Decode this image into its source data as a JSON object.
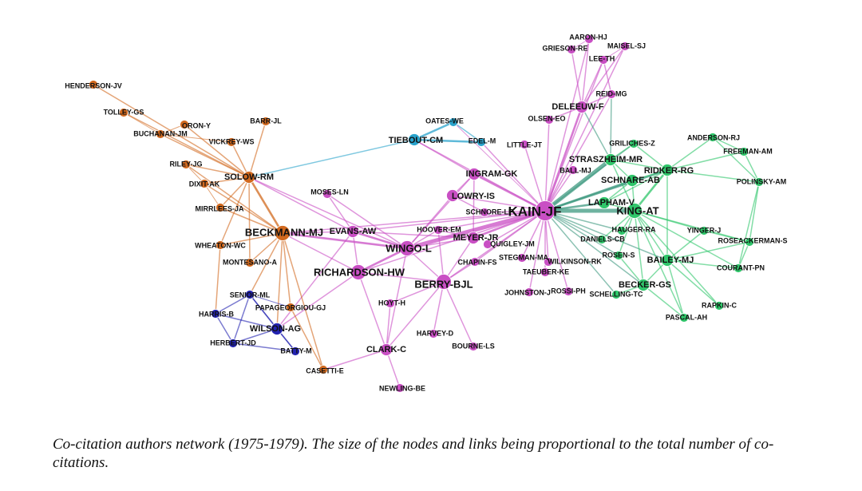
{
  "caption": "Co-citation authors network (1975-1979). The size of the nodes and links being proportional to the total number of co-citations.",
  "colors": {
    "orange": "#d2691e",
    "cyan": "#29a3cc",
    "magenta": "#c94fc4",
    "green": "#2fc66a",
    "blue": "#2323b0",
    "teal": "#3f9a80"
  },
  "nodes": [
    {
      "id": "KAIN-JF",
      "label": "KAIN-JF",
      "group": "magenta",
      "size": 3
    },
    {
      "id": "WINGO-L",
      "label": "WINGO-L",
      "group": "magenta",
      "size": 2
    },
    {
      "id": "BERRY-BJL",
      "label": "BERRY-BJL",
      "group": "magenta",
      "size": 2
    },
    {
      "id": "RICHARDSON-HW",
      "label": "RICHARDSON-HW",
      "group": "magenta",
      "size": 2
    },
    {
      "id": "EVANS-AW",
      "label": "EVANS-AW",
      "group": "magenta",
      "size": 1
    },
    {
      "id": "HOOVER-EM",
      "label": "HOOVER-EM",
      "group": "magenta",
      "size": 0
    },
    {
      "id": "MEYER-JR",
      "label": "MEYER-JR",
      "group": "magenta",
      "size": 1
    },
    {
      "id": "LOWRY-IS",
      "label": "LOWRY-IS",
      "group": "magenta",
      "size": 1
    },
    {
      "id": "INGRAM-GK",
      "label": "INGRAM-GK",
      "group": "magenta",
      "size": 1
    },
    {
      "id": "SCHNORE-LF",
      "label": "SCHNORE-LF",
      "group": "magenta",
      "size": 0
    },
    {
      "id": "QUIGLEY-JM",
      "label": "QUIGLEY-JM",
      "group": "magenta",
      "size": 0
    },
    {
      "id": "CHAPIN-FS",
      "label": "CHAPIN-FS",
      "group": "magenta",
      "size": 0
    },
    {
      "id": "STEGMAN-MA",
      "label": "STEGMAN-MA",
      "group": "magenta",
      "size": 0
    },
    {
      "id": "WILKINSON-RK",
      "label": "WILKINSON-RK",
      "group": "magenta",
      "size": 0
    },
    {
      "id": "TAEUBER-KE",
      "label": "TAEUBER-KE",
      "group": "magenta",
      "size": 0
    },
    {
      "id": "JOHNSTON-J",
      "label": "JOHNSTON-J",
      "group": "magenta",
      "size": 0
    },
    {
      "id": "ROSSI-PH",
      "label": "ROSSI-PH",
      "group": "magenta",
      "size": 0
    },
    {
      "id": "HOYT-H",
      "label": "HOYT-H",
      "group": "magenta",
      "size": 0
    },
    {
      "id": "HARVEY-D",
      "label": "HARVEY-D",
      "group": "magenta",
      "size": 0
    },
    {
      "id": "CLARK-C",
      "label": "CLARK-C",
      "group": "magenta",
      "size": 1
    },
    {
      "id": "BOURNE-LS",
      "label": "BOURNE-LS",
      "group": "magenta",
      "size": 0
    },
    {
      "id": "NEWLING-BE",
      "label": "NEWLING-BE",
      "group": "magenta",
      "size": 0
    },
    {
      "id": "MOSES-LN",
      "label": "MOSES-LN",
      "group": "magenta",
      "size": 0
    },
    {
      "id": "LITTLE-JT",
      "label": "LITTLE-JT",
      "group": "magenta",
      "size": 0
    },
    {
      "id": "OLSEN-EO",
      "label": "OLSEN-EO",
      "group": "magenta",
      "size": 0
    },
    {
      "id": "DELEEUW-F",
      "label": "DELEEUW-F",
      "group": "magenta",
      "size": 1
    },
    {
      "id": "REID-MG",
      "label": "REID-MG",
      "group": "magenta",
      "size": 0
    },
    {
      "id": "AARON-HJ",
      "label": "AARON-HJ",
      "group": "magenta",
      "size": 0
    },
    {
      "id": "GRIESON-RE",
      "label": "GRIESON-RE",
      "group": "magenta",
      "size": 0
    },
    {
      "id": "MAISEL-SJ",
      "label": "MAISEL-SJ",
      "group": "magenta",
      "size": 0
    },
    {
      "id": "LEE-TH",
      "label": "LEE-TH",
      "group": "magenta",
      "size": 0
    },
    {
      "id": "BALL-MJ",
      "label": "BALL-MJ",
      "group": "magenta",
      "size": 0
    },
    {
      "id": "OATES-WE",
      "label": "OATES-WE",
      "group": "cyan",
      "size": 0
    },
    {
      "id": "TIEBOUT-CM",
      "label": "TIEBOUT-CM",
      "group": "cyan",
      "size": 1
    },
    {
      "id": "EDEL-M",
      "label": "EDEL-M",
      "group": "cyan",
      "size": 0
    },
    {
      "id": "STRASZHEIM-MR",
      "label": "STRASZHEIM-MR",
      "group": "green",
      "size": 1
    },
    {
      "id": "GRILICHES-Z",
      "label": "GRILICHES-Z",
      "group": "green",
      "size": 0
    },
    {
      "id": "RIDKER-RG",
      "label": "RIDKER-RG",
      "group": "green",
      "size": 1
    },
    {
      "id": "SCHNARE-AB",
      "label": "SCHNARE-AB",
      "group": "green",
      "size": 1
    },
    {
      "id": "KING-AT",
      "label": "KING-AT",
      "group": "green",
      "size": 2
    },
    {
      "id": "LAPHAM-V",
      "label": "LAPHAM-V",
      "group": "green",
      "size": 1
    },
    {
      "id": "HAUGER-RA",
      "label": "HAUGER-RA",
      "group": "green",
      "size": 0
    },
    {
      "id": "DANIELS-CB",
      "label": "DANIELS-CB",
      "group": "green",
      "size": 0
    },
    {
      "id": "ROSEN-S",
      "label": "ROSEN-S",
      "group": "green",
      "size": 0
    },
    {
      "id": "BAILEY-MJ",
      "label": "BAILEY-MJ",
      "group": "green",
      "size": 1
    },
    {
      "id": "BECKER-GS",
      "label": "BECKER-GS",
      "group": "green",
      "size": 1
    },
    {
      "id": "SCHELLING-TC",
      "label": "SCHELLING-TC",
      "group": "green",
      "size": 0
    },
    {
      "id": "PASCAL-AH",
      "label": "PASCAL-AH",
      "group": "green",
      "size": 0
    },
    {
      "id": "RAPKIN-C",
      "label": "RAPKIN-C",
      "group": "green",
      "size": 0
    },
    {
      "id": "COURANT-PN",
      "label": "COURANT-PN",
      "group": "green",
      "size": 0
    },
    {
      "id": "ROSEACKERMAN-S",
      "label": "ROSEACKERMAN-S",
      "group": "green",
      "size": 0
    },
    {
      "id": "YINGER-J",
      "label": "YINGER-J",
      "group": "green",
      "size": 0
    },
    {
      "id": "POLINSKY-AM",
      "label": "POLINSKY-AM",
      "group": "green",
      "size": 0
    },
    {
      "id": "FREEMAN-AM",
      "label": "FREEMAN-AM",
      "group": "green",
      "size": 0
    },
    {
      "id": "ANDERSON-RJ",
      "label": "ANDERSON-RJ",
      "group": "green",
      "size": 0
    },
    {
      "id": "SOLOW-RM",
      "label": "SOLOW-RM",
      "group": "orange",
      "size": 1
    },
    {
      "id": "BECKMANN-MJ",
      "label": "BECKMANN-MJ",
      "group": "orange",
      "size": 2
    },
    {
      "id": "HENDERSON-JV",
      "label": "HENDERSON-JV",
      "group": "orange",
      "size": 0
    },
    {
      "id": "TOLLEY-GS",
      "label": "TOLLEY-GS",
      "group": "orange",
      "size": 0
    },
    {
      "id": "BUCHANAN-JM",
      "label": "BUCHANAN-JM",
      "group": "orange",
      "size": 0
    },
    {
      "id": "ORON-Y",
      "label": "ORON-Y",
      "group": "orange",
      "size": 0
    },
    {
      "id": "BARR-JL",
      "label": "BARR-JL",
      "group": "orange",
      "size": 0
    },
    {
      "id": "VICKREY-WS",
      "label": "VICKREY-WS",
      "group": "orange",
      "size": 0
    },
    {
      "id": "RILEY-JG",
      "label": "RILEY-JG",
      "group": "orange",
      "size": 0
    },
    {
      "id": "DIXIT-AK",
      "label": "DIXIT-AK",
      "group": "orange",
      "size": 0
    },
    {
      "id": "MIRRLEES-JA",
      "label": "MIRRLEES-JA",
      "group": "orange",
      "size": 0
    },
    {
      "id": "WHEATON-WC",
      "label": "WHEATON-WC",
      "group": "orange",
      "size": 0
    },
    {
      "id": "MONTESANO-A",
      "label": "MONTESANO-A",
      "group": "orange",
      "size": 0
    },
    {
      "id": "PAPAGEORGIOU-GJ",
      "label": "PAPAGEORGIOU-GJ",
      "group": "orange",
      "size": 0
    },
    {
      "id": "CASETTI-E",
      "label": "CASETTI-E",
      "group": "orange",
      "size": 0
    },
    {
      "id": "SENIOR-ML",
      "label": "SENIOR-ML",
      "group": "blue",
      "size": 0
    },
    {
      "id": "HARRIS-B",
      "label": "HARRIS-B",
      "group": "blue",
      "size": 0
    },
    {
      "id": "WILSON-AG",
      "label": "WILSON-AG",
      "group": "blue",
      "size": 1
    },
    {
      "id": "HERBERT-JD",
      "label": "HERBERT-JD",
      "group": "blue",
      "size": 0
    },
    {
      "id": "BATTY-M",
      "label": "BATTY-M",
      "group": "blue",
      "size": 0
    }
  ],
  "edges": [
    [
      "KAIN-JF",
      "WINGO-L",
      3
    ],
    [
      "KAIN-JF",
      "STRASZHEIM-MR",
      3
    ],
    [
      "KAIN-JF",
      "SCHNARE-AB",
      2
    ],
    [
      "KAIN-JF",
      "KING-AT",
      3
    ],
    [
      "KAIN-JF",
      "DELEEUW-F",
      2
    ],
    [
      "KAIN-JF",
      "INGRAM-GK",
      2
    ],
    [
      "KAIN-JF",
      "LOWRY-IS",
      1
    ],
    [
      "KAIN-JF",
      "MEYER-JR",
      2
    ],
    [
      "KAIN-JF",
      "HOOVER-EM",
      1
    ],
    [
      "KAIN-JF",
      "BERRY-BJL",
      1
    ],
    [
      "KAIN-JF",
      "EVANS-AW",
      1
    ],
    [
      "KAIN-JF",
      "RICHARDSON-HW",
      1
    ],
    [
      "KAIN-JF",
      "QUIGLEY-JM",
      1
    ],
    [
      "KAIN-JF",
      "CHAPIN-FS",
      1
    ],
    [
      "KAIN-JF",
      "STEGMAN-MA",
      1
    ],
    [
      "KAIN-JF",
      "WILKINSON-RK",
      1
    ],
    [
      "KAIN-JF",
      "TAEUBER-KE",
      1
    ],
    [
      "KAIN-JF",
      "JOHNSTON-J",
      1
    ],
    [
      "KAIN-JF",
      "ROSSI-PH",
      1
    ],
    [
      "KAIN-JF",
      "LAPHAM-V",
      2
    ],
    [
      "KAIN-JF",
      "HAUGER-RA",
      1
    ],
    [
      "KAIN-JF",
      "DANIELS-CB",
      1
    ],
    [
      "KAIN-JF",
      "ROSEN-S",
      1
    ],
    [
      "KAIN-JF",
      "BECKER-GS",
      1
    ],
    [
      "KAIN-JF",
      "SCHELLING-TC",
      1
    ],
    [
      "KAIN-JF",
      "BAILEY-MJ",
      1
    ],
    [
      "KAIN-JF",
      "RIDKER-RG",
      2
    ],
    [
      "KAIN-JF",
      "GRILICHES-Z",
      1
    ],
    [
      "KAIN-JF",
      "BALL-MJ",
      1
    ],
    [
      "KAIN-JF",
      "LITTLE-JT",
      1
    ],
    [
      "KAIN-JF",
      "OLSEN-EO",
      1
    ],
    [
      "KAIN-JF",
      "REID-MG",
      1
    ],
    [
      "KAIN-JF",
      "AARON-HJ",
      1
    ],
    [
      "KAIN-JF",
      "MAISEL-SJ",
      1
    ],
    [
      "KAIN-JF",
      "LEE-TH",
      1
    ],
    [
      "KAIN-JF",
      "TIEBOUT-CM",
      1
    ],
    [
      "KAIN-JF",
      "EDEL-M",
      1
    ],
    [
      "KAIN-JF",
      "SCHNORE-LF",
      1
    ],
    [
      "KAIN-JF",
      "BECKMANN-MJ",
      1
    ],
    [
      "DELEEUW-F",
      "REID-MG",
      1
    ],
    [
      "DELEEUW-F",
      "AARON-HJ",
      1
    ],
    [
      "DELEEUW-F",
      "GRIESON-RE",
      1
    ],
    [
      "DELEEUW-F",
      "MAISEL-SJ",
      1
    ],
    [
      "DELEEUW-F",
      "LEE-TH",
      1
    ],
    [
      "DELEEUW-F",
      "OLSEN-EO",
      1
    ],
    [
      "DELEEUW-F",
      "STRASZHEIM-MR",
      1
    ],
    [
      "REID-MG",
      "STRASZHEIM-MR",
      1
    ],
    [
      "REID-MG",
      "LEE-TH",
      1
    ],
    [
      "AARON-HJ",
      "GRIESON-RE",
      0
    ],
    [
      "MAISEL-SJ",
      "LEE-TH",
      0
    ],
    [
      "WINGO-L",
      "EVANS-AW",
      2
    ],
    [
      "WINGO-L",
      "BECKMANN-MJ",
      2
    ],
    [
      "WINGO-L",
      "RICHARDSON-HW",
      2
    ],
    [
      "WINGO-L",
      "BERRY-BJL",
      1
    ],
    [
      "WINGO-L",
      "HOOVER-EM",
      1
    ],
    [
      "WINGO-L",
      "MEYER-JR",
      1
    ],
    [
      "WINGO-L",
      "LOWRY-IS",
      1
    ],
    [
      "WINGO-L",
      "MOSES-LN",
      1
    ],
    [
      "WINGO-L",
      "SOLOW-RM",
      1
    ],
    [
      "WINGO-L",
      "INGRAM-GK",
      1
    ],
    [
      "WINGO-L",
      "CLARK-C",
      1
    ],
    [
      "BERRY-BJL",
      "RICHARDSON-HW",
      1
    ],
    [
      "BERRY-BJL",
      "HOYT-H",
      1
    ],
    [
      "BERRY-BJL",
      "HARVEY-D",
      1
    ],
    [
      "BERRY-BJL",
      "CLARK-C",
      1
    ],
    [
      "BERRY-BJL",
      "BOURNE-LS",
      1
    ],
    [
      "BERRY-BJL",
      "HOOVER-EM",
      1
    ],
    [
      "BERRY-BJL",
      "MEYER-JR",
      1
    ],
    [
      "BERRY-BJL",
      "CHAPIN-FS",
      1
    ],
    [
      "CLARK-C",
      "NEWLING-BE",
      1
    ],
    [
      "CLARK-C",
      "CASETTI-E",
      1
    ],
    [
      "CLARK-C",
      "RICHARDSON-HW",
      1
    ],
    [
      "CLARK-C",
      "HOYT-H",
      1
    ],
    [
      "RICHARDSON-HW",
      "EVANS-AW",
      1
    ],
    [
      "RICHARDSON-HW",
      "BECKMANN-MJ",
      1
    ],
    [
      "RICHARDSON-HW",
      "WILSON-AG",
      1
    ],
    [
      "EVANS-AW",
      "BECKMANN-MJ",
      1
    ],
    [
      "EVANS-AW",
      "MOSES-LN",
      1
    ],
    [
      "EVANS-AW",
      "SOLOW-RM",
      1
    ],
    [
      "EVANS-AW",
      "WILSON-AG",
      1
    ],
    [
      "EVANS-AW",
      "MEYER-JR",
      1
    ],
    [
      "LOWRY-IS",
      "INGRAM-GK",
      1
    ],
    [
      "LOWRY-IS",
      "SCHNORE-LF",
      1
    ],
    [
      "MEYER-JR",
      "HOOVER-EM",
      1
    ],
    [
      "MEYER-JR",
      "INGRAM-GK",
      1
    ],
    [
      "TIEBOUT-CM",
      "OATES-WE",
      2
    ],
    [
      "TIEBOUT-CM",
      "EDEL-M",
      2
    ],
    [
      "OATES-WE",
      "EDEL-M",
      1
    ],
    [
      "TIEBOUT-CM",
      "SOLOW-RM",
      1
    ],
    [
      "TIEBOUT-CM",
      "INGRAM-GK",
      1
    ],
    [
      "OATES-WE",
      "KAIN-JF",
      0
    ],
    [
      "SOLOW-RM",
      "BECKMANN-MJ",
      2
    ],
    [
      "SOLOW-RM",
      "BUCHANAN-JM",
      1
    ],
    [
      "SOLOW-RM",
      "TOLLEY-GS",
      1
    ],
    [
      "SOLOW-RM",
      "HENDERSON-JV",
      1
    ],
    [
      "SOLOW-RM",
      "ORON-Y",
      1
    ],
    [
      "SOLOW-RM",
      "BARR-JL",
      1
    ],
    [
      "SOLOW-RM",
      "VICKREY-WS",
      1
    ],
    [
      "SOLOW-RM",
      "RILEY-JG",
      1
    ],
    [
      "SOLOW-RM",
      "DIXIT-AK",
      1
    ],
    [
      "SOLOW-RM",
      "MIRRLEES-JA",
      1
    ],
    [
      "SOLOW-RM",
      "WHEATON-WC",
      1
    ],
    [
      "SOLOW-RM",
      "MONTESANO-A",
      1
    ],
    [
      "BECKMANN-MJ",
      "MIRRLEES-JA",
      1
    ],
    [
      "BECKMANN-MJ",
      "WHEATON-WC",
      1
    ],
    [
      "BECKMANN-MJ",
      "PAPAGEORGIOU-GJ",
      1
    ],
    [
      "BECKMANN-MJ",
      "MONTESANO-A",
      1
    ],
    [
      "BECKMANN-MJ",
      "DIXIT-AK",
      1
    ],
    [
      "BECKMANN-MJ",
      "RILEY-JG",
      1
    ],
    [
      "BECKMANN-MJ",
      "CASETTI-E",
      1
    ],
    [
      "BECKMANN-MJ",
      "WILSON-AG",
      1
    ],
    [
      "BECKMANN-MJ",
      "SENIOR-ML",
      1
    ],
    [
      "TOLLEY-GS",
      "BUCHANAN-JM",
      0
    ],
    [
      "BUCHANAN-JM",
      "ORON-Y",
      0
    ],
    [
      "VICKREY-WS",
      "BUCHANAN-JM",
      0
    ],
    [
      "RILEY-JG",
      "DIXIT-AK",
      0
    ],
    [
      "DIXIT-AK",
      "MIRRLEES-JA",
      0
    ],
    [
      "WHEATON-WC",
      "HARRIS-B",
      1
    ],
    [
      "SENIOR-ML",
      "HARRIS-B",
      1
    ],
    [
      "SENIOR-ML",
      "WILSON-AG",
      1
    ],
    [
      "SENIOR-ML",
      "HERBERT-JD",
      1
    ],
    [
      "SENIOR-ML",
      "BATTY-M",
      1
    ],
    [
      "HARRIS-B",
      "WILSON-AG",
      1
    ],
    [
      "HARRIS-B",
      "HERBERT-JD",
      1
    ],
    [
      "WILSON-AG",
      "HERBERT-JD",
      1
    ],
    [
      "WILSON-AG",
      "BATTY-M",
      1
    ],
    [
      "HERBERT-JD",
      "BATTY-M",
      1
    ],
    [
      "PAPAGEORGIOU-GJ",
      "CASETTI-E",
      1
    ],
    [
      "SENIOR-ML",
      "PAPAGEORGIOU-GJ",
      0
    ],
    [
      "STRASZHEIM-MR",
      "GRILICHES-Z",
      1
    ],
    [
      "STRASZHEIM-MR",
      "RIDKER-RG",
      1
    ],
    [
      "STRASZHEIM-MR",
      "SCHNARE-AB",
      1
    ],
    [
      "STRASZHEIM-MR",
      "KING-AT",
      1
    ],
    [
      "GRILICHES-Z",
      "RIDKER-RG",
      1
    ],
    [
      "RIDKER-RG",
      "SCHNARE-AB",
      1
    ],
    [
      "RIDKER-RG",
      "KING-AT",
      2
    ],
    [
      "RIDKER-RG",
      "ANDERSON-RJ",
      1
    ],
    [
      "RIDKER-RG",
      "POLINSKY-AM",
      1
    ],
    [
      "RIDKER-RG",
      "FREEMAN-AM",
      1
    ],
    [
      "RIDKER-RG",
      "LAPHAM-V",
      1
    ],
    [
      "RIDKER-RG",
      "BAILEY-MJ",
      1
    ],
    [
      "ANDERSON-RJ",
      "FREEMAN-AM",
      1
    ],
    [
      "ANDERSON-RJ",
      "POLINSKY-AM",
      1
    ],
    [
      "FREEMAN-AM",
      "POLINSKY-AM",
      1
    ],
    [
      "POLINSKY-AM",
      "COURANT-PN",
      1
    ],
    [
      "POLINSKY-AM",
      "ROSEACKERMAN-S",
      1
    ],
    [
      "KING-AT",
      "SCHNARE-AB",
      1
    ],
    [
      "KING-AT",
      "LAPHAM-V",
      1
    ],
    [
      "KING-AT",
      "BAILEY-MJ",
      1
    ],
    [
      "KING-AT",
      "BECKER-GS",
      1
    ],
    [
      "KING-AT",
      "HAUGER-RA",
      1
    ],
    [
      "KING-AT",
      "YINGER-J",
      1
    ],
    [
      "KING-AT",
      "ROSEACKERMAN-S",
      1
    ],
    [
      "KING-AT",
      "COURANT-PN",
      1
    ],
    [
      "KING-AT",
      "PASCAL-AH",
      1
    ],
    [
      "KING-AT",
      "RAPKIN-C",
      1
    ],
    [
      "KING-AT",
      "ROSEN-S",
      1
    ],
    [
      "KING-AT",
      "DANIELS-CB",
      1
    ],
    [
      "LAPHAM-V",
      "SCHNARE-AB",
      1
    ],
    [
      "BAILEY-MJ",
      "BECKER-GS",
      1
    ],
    [
      "BAILEY-MJ",
      "COURANT-PN",
      1
    ],
    [
      "BAILEY-MJ",
      "YINGER-J",
      1
    ],
    [
      "BAILEY-MJ",
      "ROSEACKERMAN-S",
      1
    ],
    [
      "BAILEY-MJ",
      "PASCAL-AH",
      1
    ],
    [
      "BAILEY-MJ",
      "RAPKIN-C",
      1
    ],
    [
      "BECKER-GS",
      "SCHELLING-TC",
      1
    ],
    [
      "BECKER-GS",
      "PASCAL-AH",
      1
    ],
    [
      "BECKER-GS",
      "ROSEN-S",
      1
    ],
    [
      "YINGER-J",
      "ROSEACKERMAN-S",
      1
    ],
    [
      "COURANT-PN",
      "ROSEACKERMAN-S",
      1
    ]
  ]
}
